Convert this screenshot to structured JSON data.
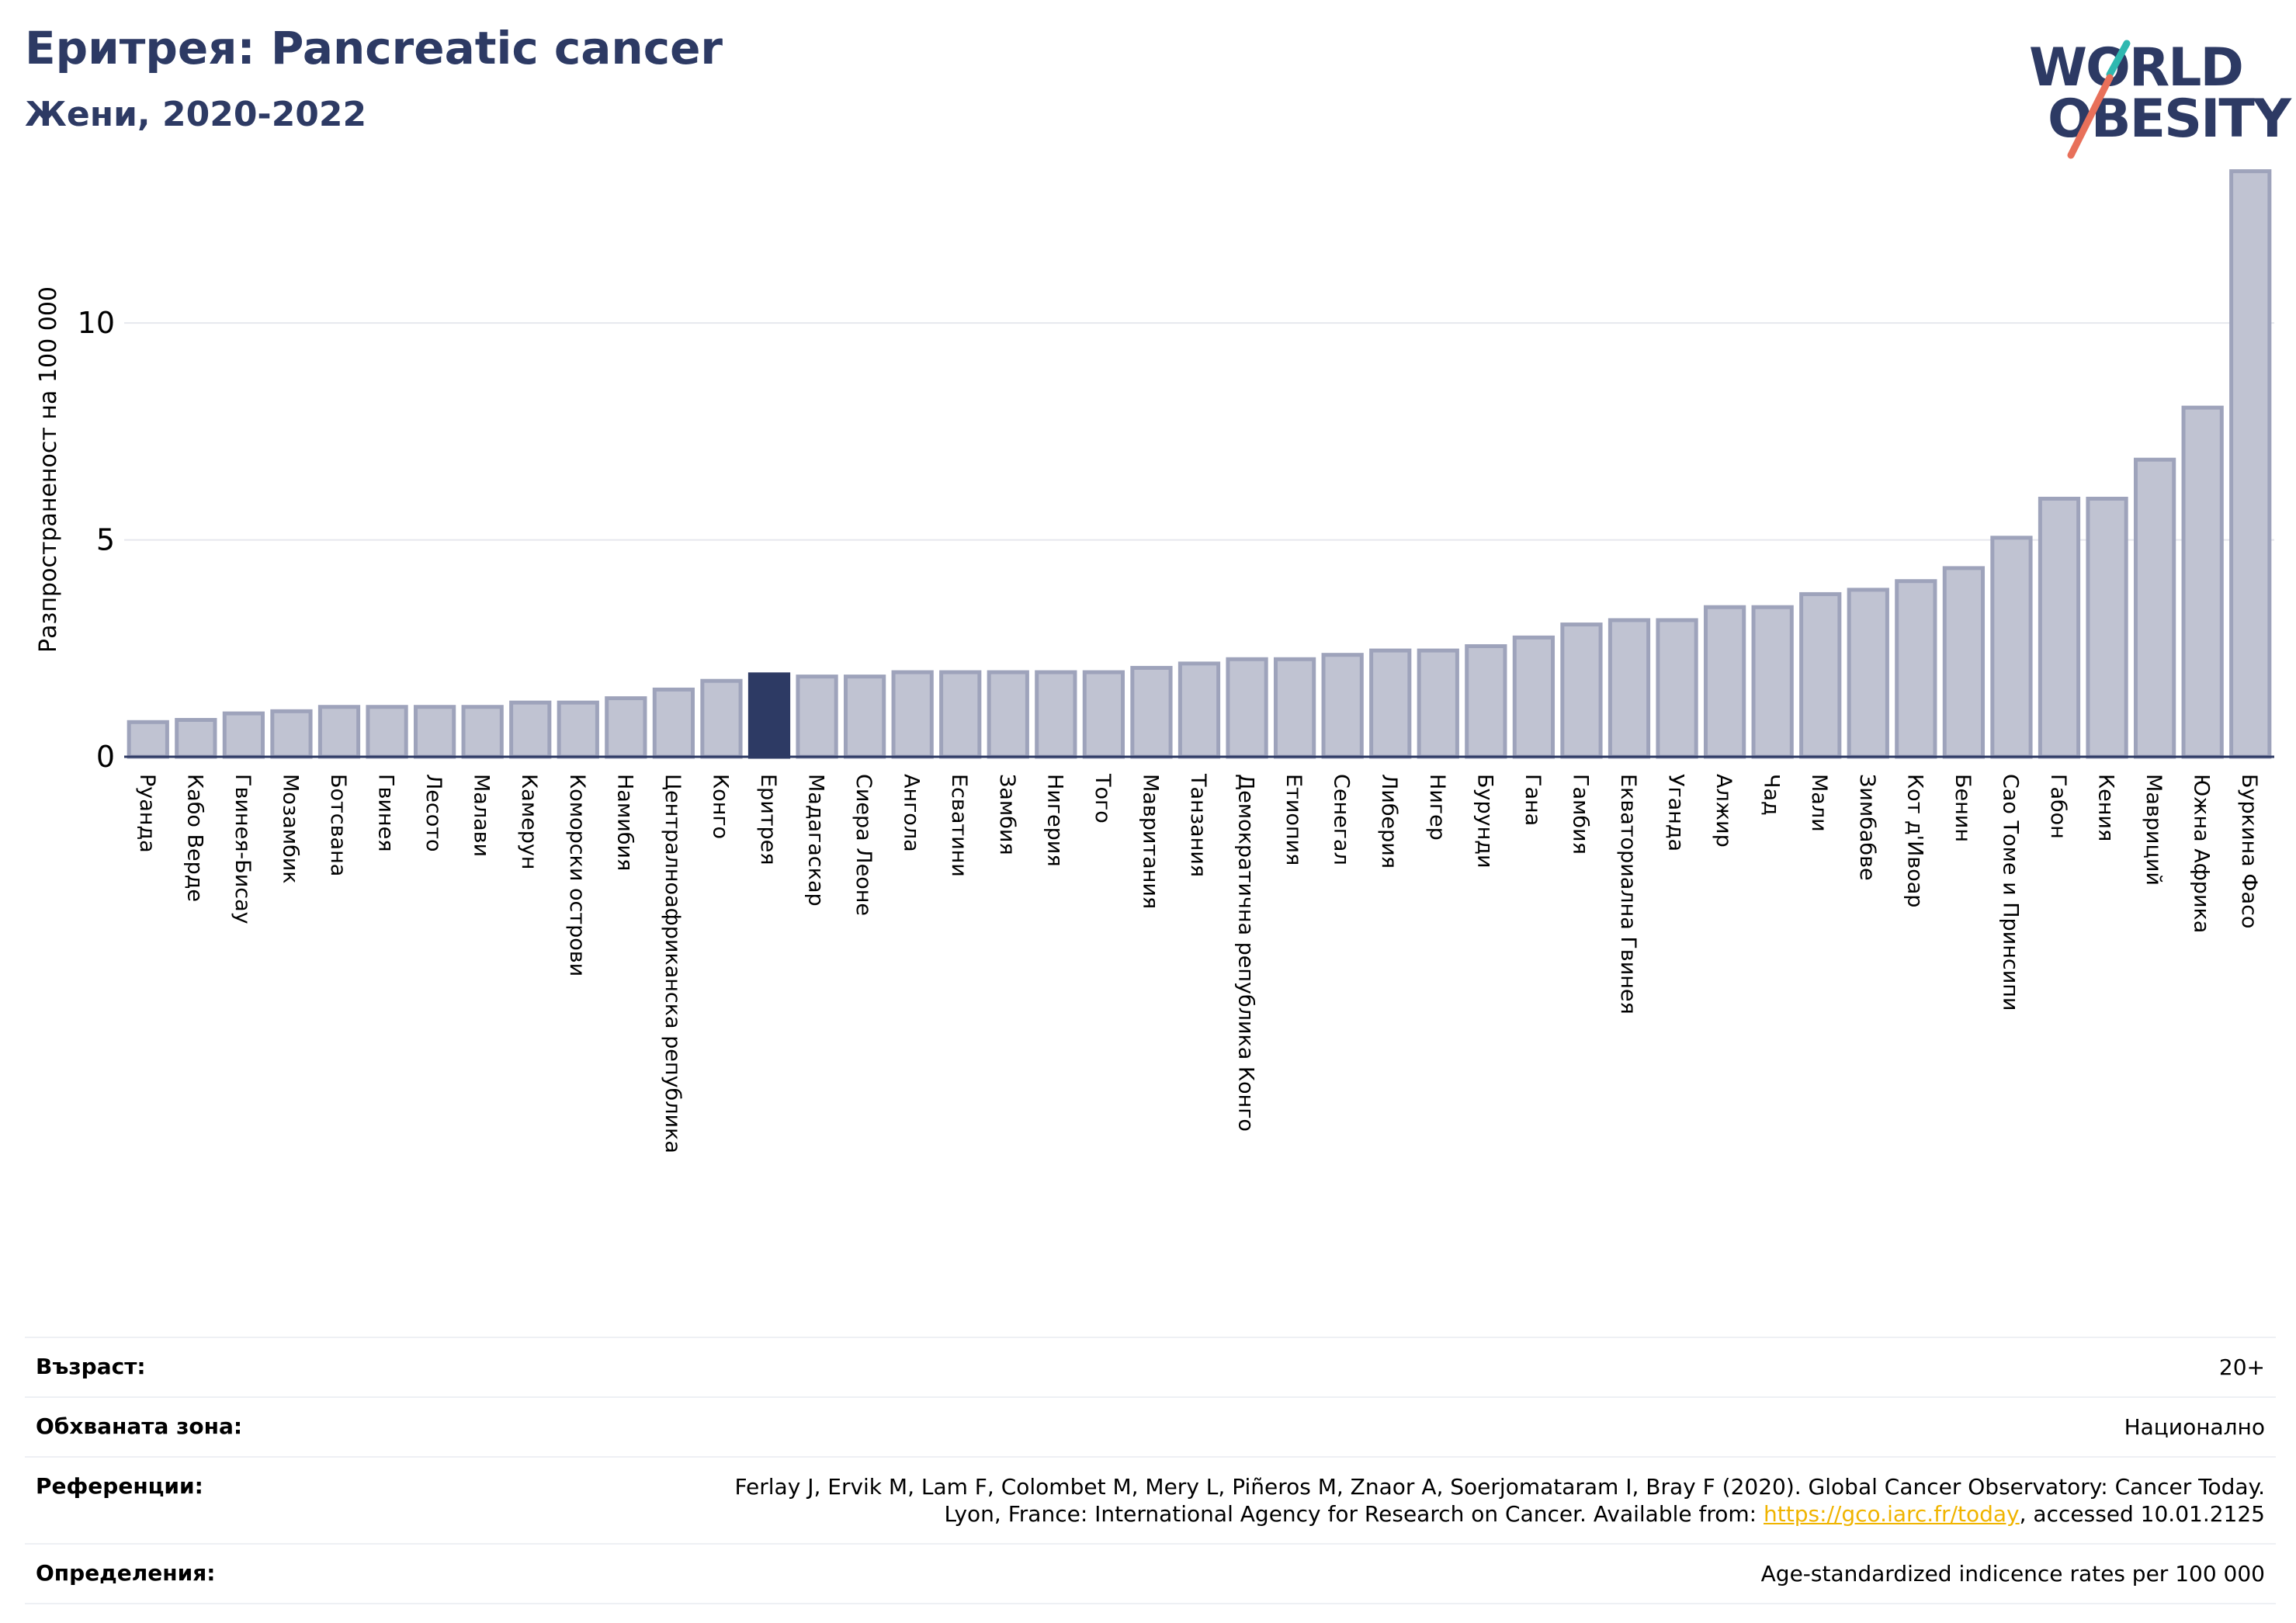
{
  "header": {
    "title": "Еритрея: Pancreatic cancer",
    "subtitle": "Жени, 2020-2022"
  },
  "logo": {
    "line1": "WORLD",
    "line2": "OBESITY",
    "colors": {
      "text": "#2d3a64",
      "slash_teal": "#2fb8b0",
      "slash_coral": "#e8705a"
    }
  },
  "chart_data": {
    "type": "bar",
    "ylabel": "Разпространеност  на 100 000",
    "xlabel": "",
    "ylim": [
      0,
      13.6
    ],
    "yticks": [
      0,
      5,
      10
    ],
    "grid": true,
    "highlight": "Еритрея",
    "colors": {
      "bar": "#c0c3d2",
      "bar_edge": "#9ea3bb",
      "highlight": "#2d3a64",
      "grid": "#e6e8ee",
      "axis": "#2d3a64"
    },
    "categories": [
      "Руанда",
      "Кабо Верде",
      "Гвинея-Бисау",
      "Мозамбик",
      "Ботсвана",
      "Гвинея",
      "Лесото",
      "Малави",
      "Камерун",
      "Коморски острови",
      "Намибия",
      "Централноафриканска република",
      "Конго",
      "Еритрея",
      "Мадагаскар",
      "Сиера Леоне",
      "Ангола",
      "Есватини",
      "Замбия",
      "Нигерия",
      "Того",
      "Мавритания",
      "Танзания",
      "Демократична република Конго",
      "Етиопия",
      "Сенегал",
      "Либерия",
      "Нигер",
      "Бурунди",
      "Гана",
      "Гамбия",
      "Екваториална Гвинея",
      "Уганда",
      "Алжир",
      "Чад",
      "Мали",
      "Зимбабве",
      "Кот д'Ивоар",
      "Бенин",
      "Сао Томе и Принсипи",
      "Габон",
      "Кения",
      "Мавриций",
      "Южна Африка",
      "Буркина Фасо"
    ],
    "values": [
      0.8,
      0.85,
      1.0,
      1.05,
      1.15,
      1.15,
      1.15,
      1.15,
      1.25,
      1.25,
      1.35,
      1.55,
      1.75,
      1.9,
      1.85,
      1.85,
      1.95,
      1.95,
      1.95,
      1.95,
      1.95,
      2.05,
      2.15,
      2.25,
      2.25,
      2.35,
      2.45,
      2.45,
      2.55,
      2.75,
      3.05,
      3.15,
      3.15,
      3.45,
      3.45,
      3.75,
      3.85,
      4.05,
      4.35,
      5.05,
      5.95,
      5.95,
      6.85,
      8.05,
      13.5
    ]
  },
  "meta": {
    "age_label": "Възраст:",
    "age_value": "20+",
    "area_label": "Обхваната зона:",
    "area_value": "Национално",
    "refs_label": "Референции:",
    "refs_line1": "Ferlay J, Ervik M, Lam F, Colombet M, Mery L, Piñeros M, Znaor A, Soerjomataram I, Bray F (2020). Global Cancer Observatory: Cancer Today.",
    "refs_line2_pre": "Lyon, France: International Agency for Research on Cancer. Available from: ",
    "refs_link": "https://gco.iarc.fr/today",
    "refs_line2_post": ", accessed 10.01.2125",
    "def_label": "Определения:",
    "def_value": "Age-standardized indicence rates per 100 000"
  }
}
